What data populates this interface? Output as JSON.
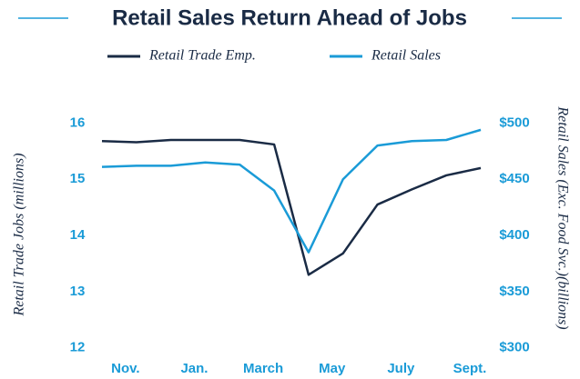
{
  "chart_data": {
    "type": "line",
    "title": "Retail Sales Return Ahead of Jobs",
    "y_label": "Retail Trade Jobs (millions)",
    "y2_label": "Retail Sales (Exc. Food Svc.)(billions)",
    "categories": [
      null,
      "Nov.",
      null,
      "Jan.",
      null,
      "March",
      null,
      "May",
      null,
      "July",
      null,
      "Sept."
    ],
    "series": [
      {
        "name": "Retail Trade Emp.",
        "color": "#1a2b45",
        "values": [
          15.68,
          15.66,
          15.7,
          15.7,
          15.7,
          15.62,
          13.3,
          13.68,
          14.55,
          14.82,
          15.07,
          15.2
        ]
      },
      {
        "name": "Retail Sales",
        "color": "#1a9bd7",
        "axis": "y2",
        "values": [
          461,
          462,
          462,
          465,
          463,
          440,
          385,
          450,
          480,
          484,
          485,
          494
        ]
      }
    ],
    "ylim": [
      11.8,
      16.25
    ],
    "yticks": [
      12,
      13,
      14,
      15,
      16
    ],
    "y2lim": [
      290,
      512.5
    ],
    "y2ticks": [
      {
        "value": 300,
        "label": "$300"
      },
      {
        "value": 350,
        "label": "$350"
      },
      {
        "value": 400,
        "label": "$400"
      },
      {
        "value": 450,
        "label": "$450"
      },
      {
        "value": 500,
        "label": "$500"
      }
    ],
    "legend": "top",
    "grid": false
  }
}
